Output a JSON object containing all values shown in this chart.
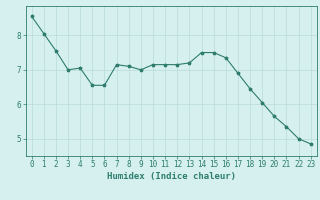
{
  "x": [
    0,
    1,
    2,
    3,
    4,
    5,
    6,
    7,
    8,
    9,
    10,
    11,
    12,
    13,
    14,
    15,
    16,
    17,
    18,
    19,
    20,
    21,
    22,
    23
  ],
  "y": [
    8.55,
    8.05,
    7.55,
    7.0,
    7.05,
    6.55,
    6.55,
    7.15,
    7.1,
    7.0,
    7.15,
    7.15,
    7.15,
    7.2,
    7.5,
    7.5,
    7.35,
    6.9,
    6.45,
    6.05,
    5.65,
    5.35,
    5.0,
    4.85
  ],
  "line_color": "#2e7d6e",
  "marker": "*",
  "marker_size": 2.5,
  "bg_color": "#d6f0f0",
  "grid_color": "#b8dada",
  "axis_color": "#2e7d6e",
  "xlabel": "Humidex (Indice chaleur)",
  "xlim": [
    -0.5,
    23.5
  ],
  "ylim": [
    4.5,
    8.85
  ],
  "yticks": [
    5,
    6,
    7,
    8
  ],
  "xticks": [
    0,
    1,
    2,
    3,
    4,
    5,
    6,
    7,
    8,
    9,
    10,
    11,
    12,
    13,
    14,
    15,
    16,
    17,
    18,
    19,
    20,
    21,
    22,
    23
  ],
  "fontsize_tick": 5.5,
  "fontsize_label": 6.5
}
